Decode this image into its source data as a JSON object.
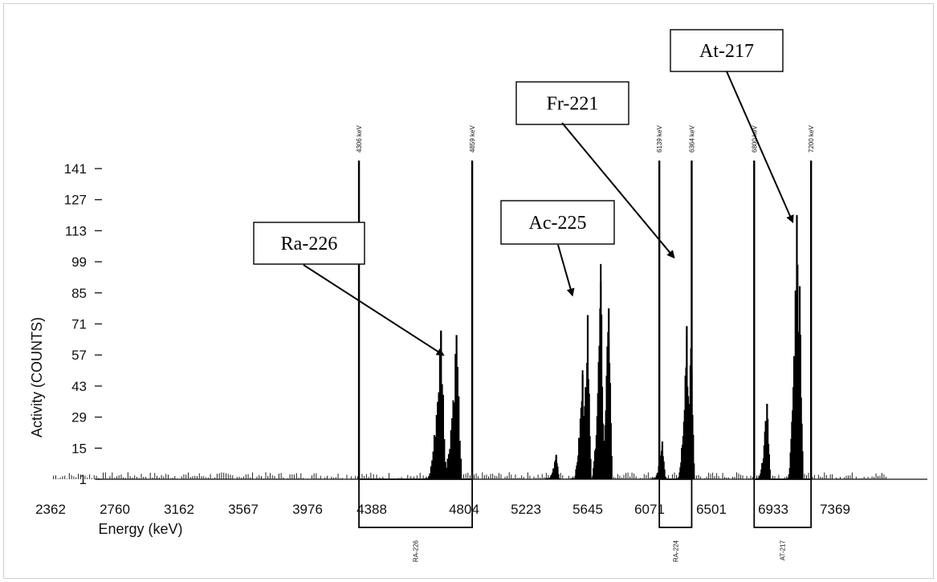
{
  "chart_data": {
    "type": "bar",
    "title": "",
    "xlabel": "Energy (keV)",
    "ylabel": "Activity (COUNTS)",
    "x_ticks": [
      "2362",
      "2760",
      "3162",
      "3567",
      "3976",
      "4388",
      "4804",
      "5223",
      "5645",
      "6071",
      "6501",
      "6933",
      "7369"
    ],
    "y_ticks": [
      "1",
      "15",
      "29",
      "43",
      "57",
      "71",
      "85",
      "99",
      "113",
      "127",
      "141"
    ],
    "xlim": [
      2362,
      7750
    ],
    "ylim": [
      1,
      141
    ],
    "grid": false,
    "peaks": [
      {
        "center": 4700,
        "height": 68
      },
      {
        "center": 4770,
        "height": 66
      },
      {
        "center": 5430,
        "height": 12
      },
      {
        "center": 5610,
        "height": 48
      },
      {
        "center": 5645,
        "height": 75
      },
      {
        "center": 5735,
        "height": 90
      },
      {
        "center": 5790,
        "height": 78
      },
      {
        "center": 6160,
        "height": 18
      },
      {
        "center": 6330,
        "height": 70
      },
      {
        "center": 6360,
        "height": 60
      },
      {
        "center": 6890,
        "height": 35
      },
      {
        "center": 7100,
        "height": 120
      },
      {
        "center": 7120,
        "height": 88
      }
    ],
    "regions": [
      {
        "left_label": "4306 keV",
        "right_label": "4859 keV",
        "left": 4306,
        "right": 4859,
        "name": "RA-226"
      },
      {
        "left_label": "6139 keV",
        "right_label": "6364 keV",
        "left": 6139,
        "right": 6364,
        "name": "RA-224"
      },
      {
        "left_label": "6800 keV",
        "right_label": "7200 keV",
        "left": 6800,
        "right": 7200,
        "name": "AT-217"
      }
    ],
    "annotations": [
      {
        "label": "Ra-226",
        "target_x": 4710,
        "target_y": 57
      },
      {
        "label": "Ac-225",
        "target_x": 5540,
        "target_y": 84
      },
      {
        "label": "Fr-221",
        "target_x": 6240,
        "target_y": 101
      },
      {
        "label": "At-217",
        "target_x": 7070,
        "target_y": 117
      }
    ]
  }
}
